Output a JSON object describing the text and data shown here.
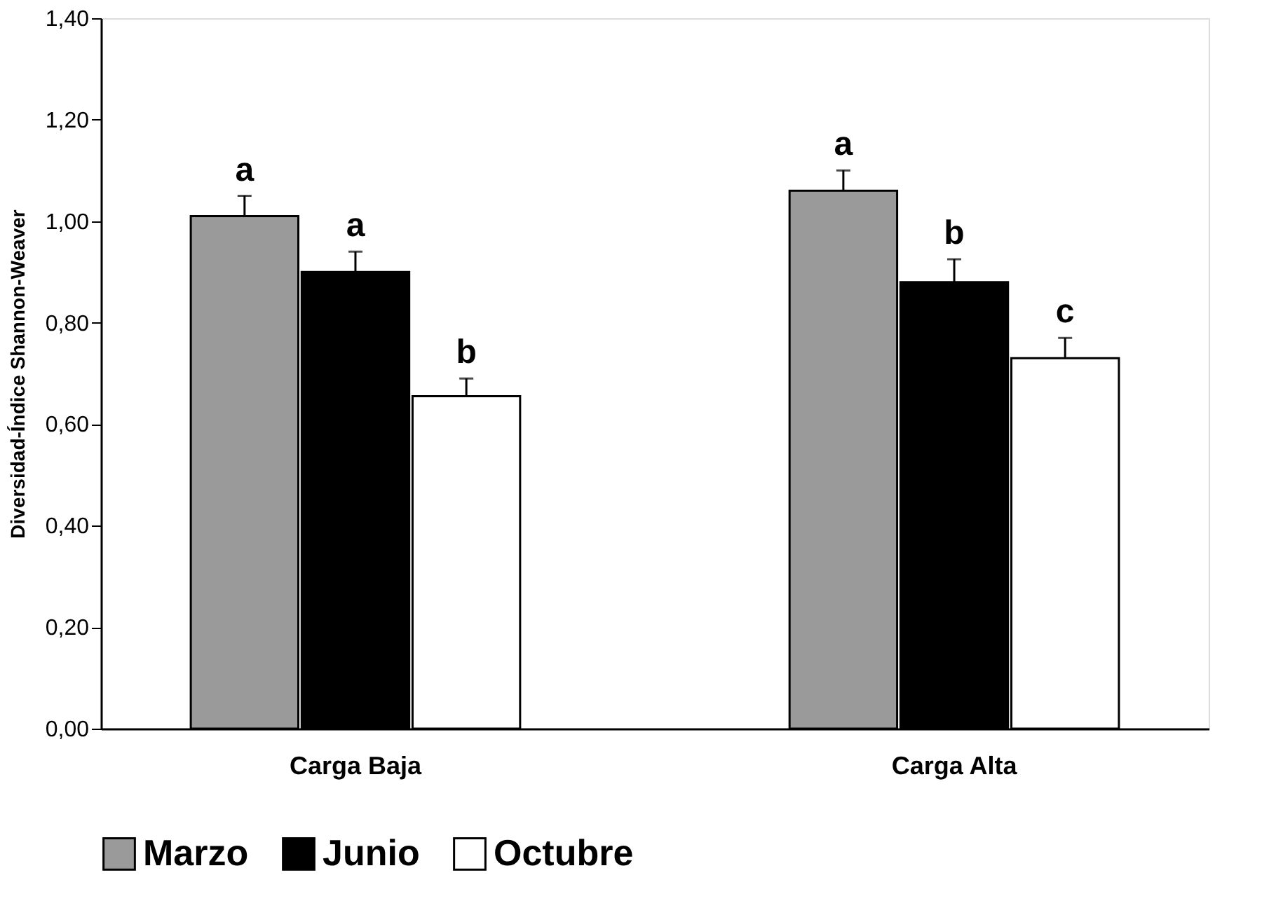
{
  "chart_data": {
    "type": "bar",
    "ylabel": "Diversidad-Índice  Shannon-Weaver",
    "categories": [
      "Carga Baja",
      "Carga Alta"
    ],
    "series": [
      {
        "name": "Marzo",
        "color": "#9a9a9a",
        "values": [
          1.01,
          1.06
        ],
        "errors": [
          0.04,
          0.04
        ],
        "value_labels": [
          "a",
          "a"
        ]
      },
      {
        "name": "Junio",
        "color": "#000000",
        "values": [
          0.9,
          0.88
        ],
        "errors": [
          0.04,
          0.045
        ],
        "value_labels": [
          "a",
          "b"
        ]
      },
      {
        "name": "Octubre",
        "color": "#ffffff",
        "values": [
          0.655,
          0.73
        ],
        "errors": [
          0.035,
          0.04
        ],
        "value_labels": [
          "b",
          "c"
        ]
      }
    ],
    "ylim": [
      0,
      1.4
    ],
    "yticks": [
      {
        "value": 0,
        "label": "0,00"
      },
      {
        "value": 0.2,
        "label": "0,20"
      },
      {
        "value": 0.4,
        "label": "0,40"
      },
      {
        "value": 0.6,
        "label": "0,60"
      },
      {
        "value": 0.8,
        "label": "0,80"
      },
      {
        "value": 1.0,
        "label": "1,00"
      },
      {
        "value": 1.2,
        "label": "1,20"
      },
      {
        "value": 1.4,
        "label": "1,40"
      }
    ],
    "grid": false,
    "legend": "bottom"
  }
}
